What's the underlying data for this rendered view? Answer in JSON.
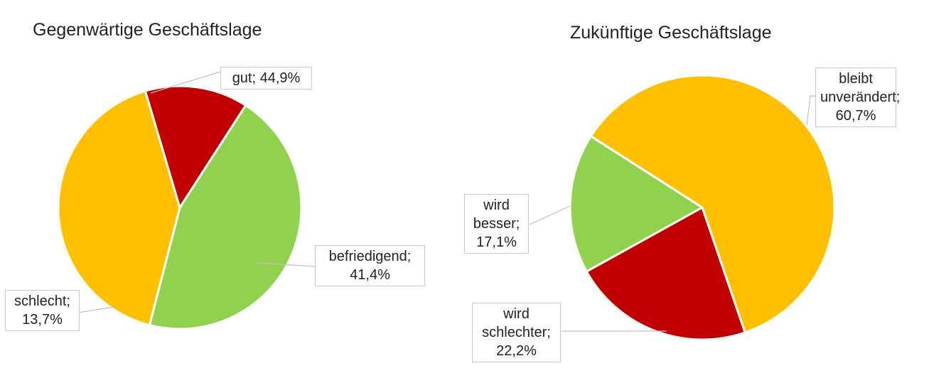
{
  "chart_data": [
    {
      "type": "pie",
      "title": "Gegenwärtige Geschäftslage",
      "slices": [
        {
          "label": "gut",
          "value": 44.9,
          "display": "44,9%",
          "color": "#92d050"
        },
        {
          "label": "befriedigend",
          "value": 41.4,
          "display": "41,4%",
          "color": "#ffc000"
        },
        {
          "label": "schlecht",
          "value": 13.7,
          "display": "13,7%",
          "color": "#c00000"
        }
      ],
      "legend": "none"
    },
    {
      "type": "pie",
      "title": "Zukünftige Geschäftslage",
      "slices": [
        {
          "label": "bleibt unverändert",
          "value": 60.7,
          "display": "60,7%",
          "color": "#ffc000"
        },
        {
          "label": "wird schlechter",
          "value": 22.2,
          "display": "22,2%",
          "color": "#c00000"
        },
        {
          "label": "wird besser",
          "value": 17.1,
          "display": "17,1%",
          "color": "#92d050"
        }
      ],
      "legend": "none"
    }
  ],
  "labels": {
    "chart0": {
      "gut": [
        "gut; 44,9%"
      ],
      "befriedigend": [
        "befriedigend;",
        "41,4%"
      ],
      "schlecht": [
        "schlecht;",
        "13,7%"
      ]
    },
    "chart1": {
      "bleibt": [
        "bleibt",
        "unverändert;",
        "60,7%"
      ],
      "besser": [
        "wird",
        "besser;",
        "17,1%"
      ],
      "schlechter": [
        "wird",
        "schlechter;",
        "22,2%"
      ]
    }
  }
}
